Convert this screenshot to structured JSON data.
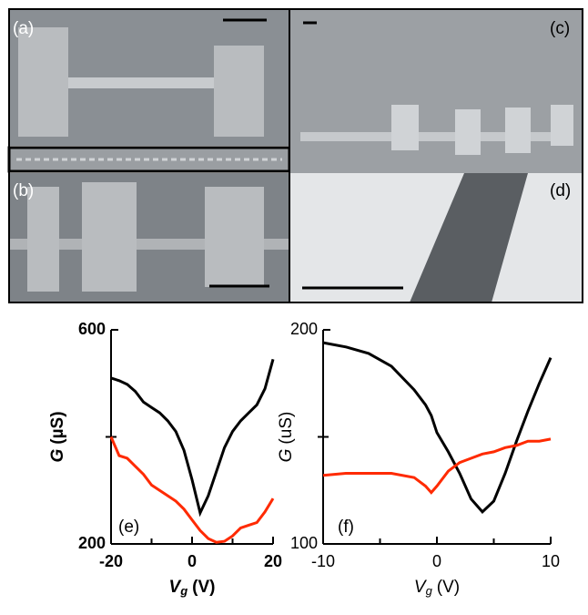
{
  "panels": [
    {
      "label": "(a)"
    },
    {
      "label": "(b)"
    },
    {
      "label": "(c)"
    },
    {
      "label": "(d)"
    }
  ],
  "chart_data": [
    {
      "type": "line",
      "annotation": "(e)",
      "x_label": {
        "symbol": "V",
        "subscript": "g",
        "unit": "(V)"
      },
      "y_label": {
        "symbol": "G",
        "unit": "(µS)"
      },
      "xlim": [
        -20,
        20
      ],
      "xticks": [
        -20,
        0,
        20
      ],
      "xticks_minor": [
        -10,
        10
      ],
      "ylim": [
        200,
        600
      ],
      "yticks": [
        200,
        600
      ],
      "yticks_minor": [
        400
      ],
      "x": [
        -20,
        -18,
        -16,
        -14,
        -12,
        -10,
        -8,
        -6,
        -4,
        -2,
        0,
        2,
        4,
        6,
        8,
        10,
        12,
        14,
        16,
        18,
        20
      ],
      "series": [
        {
          "color": "#000000",
          "values": [
            510,
            505,
            498,
            485,
            465,
            455,
            445,
            430,
            410,
            375,
            320,
            258,
            290,
            335,
            380,
            410,
            430,
            445,
            460,
            490,
            545
          ]
        },
        {
          "color": "#ff2a00",
          "values": [
            400,
            365,
            360,
            345,
            330,
            310,
            300,
            290,
            280,
            265,
            245,
            225,
            210,
            203,
            205,
            215,
            230,
            235,
            240,
            260,
            285
          ]
        }
      ]
    },
    {
      "type": "line",
      "annotation": "(f)",
      "x_label": {
        "symbol": "V",
        "subscript": "g",
        "unit": "(V)"
      },
      "y_label": {
        "symbol": "G",
        "unit": "(uS)"
      },
      "xlim": [
        -10,
        10
      ],
      "xticks": [
        -10,
        0,
        10
      ],
      "xticks_minor": [
        -5,
        5
      ],
      "ylim": [
        100,
        200
      ],
      "yticks": [
        100,
        200
      ],
      "yticks_minor": [
        150
      ],
      "x": [
        -10,
        -8,
        -6,
        -4,
        -2,
        -1,
        -0.5,
        0,
        1,
        2,
        3,
        4,
        5,
        6,
        7,
        8,
        9,
        10
      ],
      "series": [
        {
          "color": "#000000",
          "values": [
            194,
            192,
            189,
            183,
            172,
            165,
            160,
            152,
            143,
            133,
            121,
            115,
            120,
            133,
            148,
            162,
            175,
            187
          ]
        },
        {
          "color": "#ff2a00",
          "values": [
            132,
            133,
            133,
            133,
            131,
            127,
            124,
            127,
            134,
            138,
            140,
            142,
            143,
            145,
            146,
            148,
            148,
            149
          ]
        }
      ]
    }
  ]
}
